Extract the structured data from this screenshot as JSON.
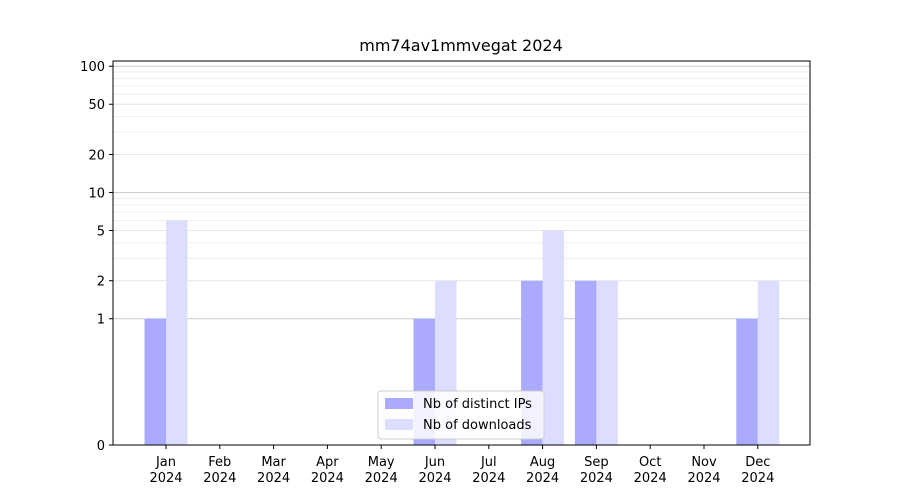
{
  "chart_data": {
    "type": "bar",
    "title": "mm74av1mmvegat 2024",
    "xlabel": "",
    "ylabel": "",
    "categories": [
      [
        "Jan",
        "2024"
      ],
      [
        "Feb",
        "2024"
      ],
      [
        "Mar",
        "2024"
      ],
      [
        "Apr",
        "2024"
      ],
      [
        "May",
        "2024"
      ],
      [
        "Jun",
        "2024"
      ],
      [
        "Jul",
        "2024"
      ],
      [
        "Aug",
        "2024"
      ],
      [
        "Sep",
        "2024"
      ],
      [
        "Oct",
        "2024"
      ],
      [
        "Nov",
        "2024"
      ],
      [
        "Dec",
        "2024"
      ]
    ],
    "series": [
      {
        "name": "Nb of distinct IPs",
        "color": "#aaaaff",
        "values": [
          1,
          0,
          0,
          0,
          0,
          1,
          0,
          2,
          2,
          0,
          0,
          1
        ]
      },
      {
        "name": "Nb of downloads",
        "color": "#ddddff",
        "values": [
          6,
          0,
          0,
          0,
          0,
          2,
          0,
          5,
          2,
          0,
          0,
          2
        ]
      }
    ],
    "yscale": "symlog",
    "ylim": [
      0,
      110
    ],
    "yticks": [
      0,
      1,
      2,
      5,
      10,
      20,
      50,
      100
    ],
    "grid": true,
    "legend": "bottom-center"
  }
}
